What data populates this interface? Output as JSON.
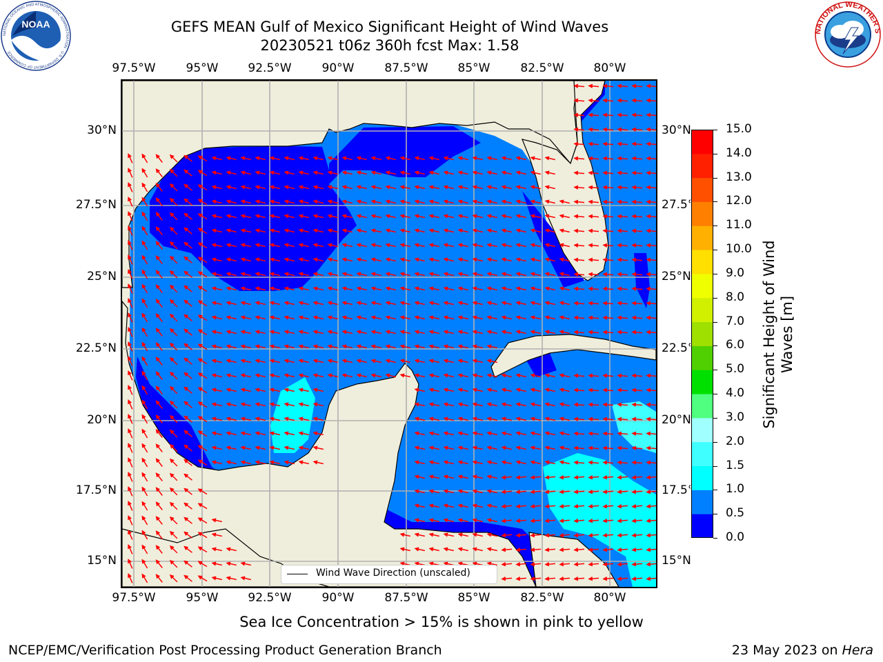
{
  "title_line1": "GEFS MEAN Gulf of Mexico Significant Height of Wind Waves",
  "title_line2": "20230521 t06z 360h fcst   Max: 1.58",
  "lon_labels": [
    "97.5°W",
    "95°W",
    "92.5°W",
    "90°W",
    "87.5°W",
    "85°W",
    "82.5°W",
    "80°W"
  ],
  "lat_labels": [
    "30°N",
    "27.5°N",
    "25°N",
    "22.5°N",
    "20°N",
    "17.5°N",
    "15°N"
  ],
  "colorbar": {
    "label": "Significant Height of Wind Waves [m]",
    "ticks": [
      "15.0",
      "14.0",
      "13.0",
      "12.0",
      "11.0",
      "10.0",
      "9.0",
      "8.0",
      "7.0",
      "6.0",
      "5.0",
      "4.0",
      "3.0",
      "2.0",
      "1.5",
      "1.0",
      "0.5",
      "0.0"
    ],
    "colors": [
      "#0000ff",
      "#0080ff",
      "#00ffff",
      "#40ffff",
      "#a0ffff",
      "#50ff80",
      "#00e000",
      "#50d000",
      "#a0e000",
      "#d0f000",
      "#f0ff00",
      "#ffe000",
      "#ffb000",
      "#ff8000",
      "#ff5000",
      "#ff2000",
      "#ff0000"
    ]
  },
  "legend_text": "Wind Wave Direction (unscaled)",
  "sea_ice_note": "Sea Ice Concentration > 15% is shown in pink to yellow",
  "footer_left": "NCEP/EMC/Verification Post Processing Product Generation Branch",
  "footer_right_prefix": "23 May 2023 on ",
  "footer_right_machine": "Hera",
  "noaa_logo_text": "NOAA",
  "noaa_ring_text": "NATIONAL OCEANIC AND ATMOSPHERIC ADMINISTRATION · U.S. DEPARTMENT OF COMMERCE",
  "nws_ring_text": "NATIONAL WEATHER SERVICE",
  "map_colors": {
    "land": "#efeedc",
    "deep": "#0000ff",
    "mid": "#0080ff",
    "cyan": "#00ffff",
    "arrow": "#ff0000"
  }
}
